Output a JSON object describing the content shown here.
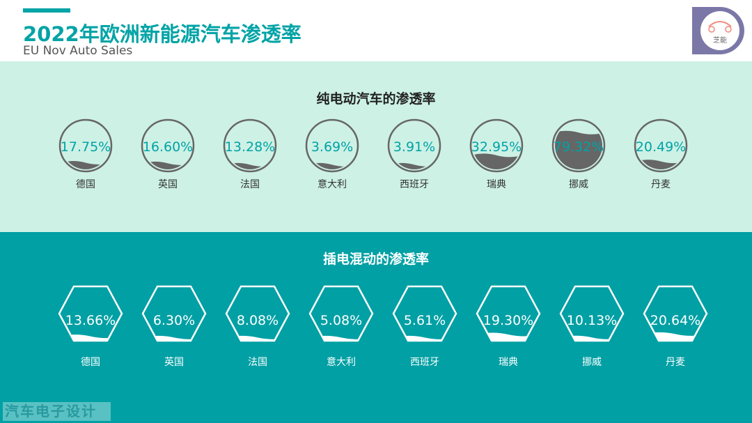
{
  "header": {
    "title": "2022年欧洲新能源汽车渗透率",
    "subtitle": "EU Nov Auto Sales",
    "logo_text": "芝能"
  },
  "colors": {
    "accent": "#00a3a6",
    "mint": "#cdf1e5",
    "teal": "#00a0a4",
    "fill_gray": "#666666",
    "logo": "#7b78a8"
  },
  "watermark": "汽车电子设计",
  "chart_data": [
    {
      "type": "gauge",
      "title": "纯电动汽车的渗透率",
      "shape": "circle",
      "unit": "%",
      "categories": [
        "德国",
        "英国",
        "法国",
        "意大利",
        "西班牙",
        "瑞典",
        "挪威",
        "丹麦"
      ],
      "values": [
        17.75,
        16.6,
        13.28,
        3.69,
        3.91,
        32.95,
        79.32,
        20.49
      ],
      "labels": [
        "17.75%",
        "16.60%",
        "13.28%",
        "3.69%",
        "3.91%",
        "32.95%",
        "79.32%",
        "20.49%"
      ]
    },
    {
      "type": "gauge",
      "title": "插电混动的渗透率",
      "shape": "hexagon",
      "unit": "%",
      "categories": [
        "德国",
        "英国",
        "法国",
        "意大利",
        "西班牙",
        "瑞典",
        "挪威",
        "丹麦"
      ],
      "values": [
        13.66,
        6.3,
        8.08,
        5.08,
        5.61,
        19.3,
        10.13,
        20.64
      ],
      "labels": [
        "13.66%",
        "6.30%",
        "8.08%",
        "5.08%",
        "5.61%",
        "19.30%",
        "10.13%",
        "20.64%"
      ]
    }
  ]
}
